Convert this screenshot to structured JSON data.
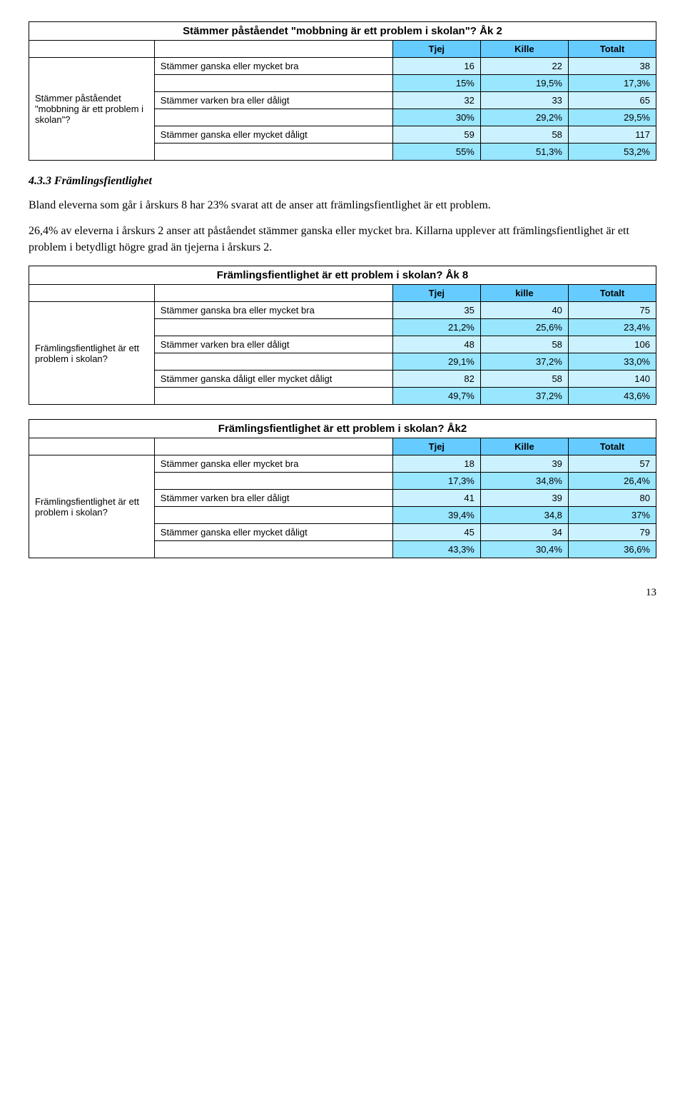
{
  "colors": {
    "header_bg": "#66ccff",
    "light_bg": "#ccf2ff",
    "med_bg": "#99e6ff",
    "border": "#000000",
    "text": "#000000",
    "page_bg": "#ffffff"
  },
  "table1": {
    "title": "Stämmer påståendet \"mobbning är ett problem i skolan\"? Åk 2",
    "col_headers": [
      "Tjej",
      "Kille",
      "Totalt"
    ],
    "stub": "Stämmer påståendet \"mobbning är ett problem i skolan\"?",
    "rows": [
      {
        "label": "Stämmer ganska eller mycket bra",
        "vals": [
          "16",
          "22",
          "38"
        ],
        "pct": [
          "15%",
          "19,5%",
          "17,3%"
        ]
      },
      {
        "label": "Stämmer varken bra eller dåligt",
        "vals": [
          "32",
          "33",
          "65"
        ],
        "pct": [
          "30%",
          "29,2%",
          "29,5%"
        ]
      },
      {
        "label": "Stämmer ganska eller mycket dåligt",
        "vals": [
          "59",
          "58",
          "117"
        ],
        "pct": [
          "55%",
          "51,3%",
          "53,2%"
        ]
      }
    ]
  },
  "section_heading": "4.3.3 Främlingsfientlighet",
  "para1": "Bland eleverna som går i årskurs 8 har 23% svarat att de anser att främlingsfientlighet är ett problem.",
  "para2": "26,4% av eleverna i årskurs 2 anser att påståendet stämmer ganska eller mycket bra. Killarna upplever att främlingsfientlighet är ett problem i betydligt högre grad än tjejerna i årskurs 2.",
  "table2": {
    "title": "Främlingsfientlighet är ett problem i skolan? Åk 8",
    "col_headers": [
      "Tjej",
      "kille",
      "Totalt"
    ],
    "stub": "Främlingsfientlighet är ett problem i skolan?",
    "rows": [
      {
        "label": "Stämmer ganska bra eller mycket bra",
        "vals": [
          "35",
          "40",
          "75"
        ],
        "pct": [
          "21,2%",
          "25,6%",
          "23,4%"
        ]
      },
      {
        "label": "Stämmer varken bra eller dåligt",
        "vals": [
          "48",
          "58",
          "106"
        ],
        "pct": [
          "29,1%",
          "37,2%",
          "33,0%"
        ]
      },
      {
        "label": "Stämmer ganska dåligt eller mycket dåligt",
        "vals": [
          "82",
          "58",
          "140"
        ],
        "pct": [
          "49,7%",
          "37,2%",
          "43,6%"
        ]
      }
    ]
  },
  "table3": {
    "title": "Främlingsfientlighet är ett problem i skolan? Åk2",
    "col_headers": [
      "Tjej",
      "Kille",
      "Totalt"
    ],
    "stub": "Främlingsfientlighet är ett problem i skolan?",
    "rows": [
      {
        "label": "Stämmer ganska eller mycket bra",
        "vals": [
          "18",
          "39",
          "57"
        ],
        "pct": [
          "17,3%",
          "34,8%",
          "26,4%"
        ]
      },
      {
        "label": "Stämmer varken bra eller dåligt",
        "vals": [
          "41",
          "39",
          "80"
        ],
        "pct": [
          "39,4%",
          "34,8",
          "37%"
        ]
      },
      {
        "label": "Stämmer ganska eller mycket dåligt",
        "vals": [
          "45",
          "34",
          "79"
        ],
        "pct": [
          "43,3%",
          "30,4%",
          "36,6%"
        ]
      }
    ]
  },
  "page_number": "13"
}
